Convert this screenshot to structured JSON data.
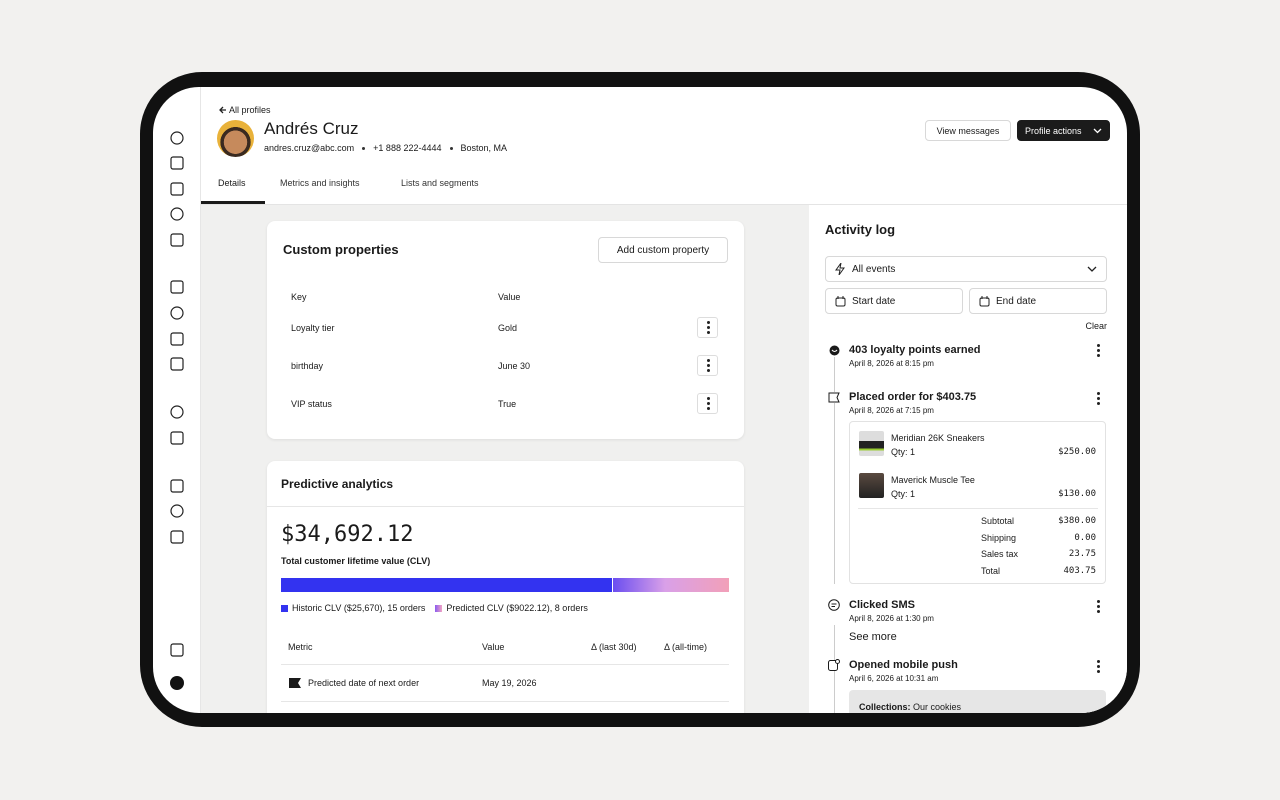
{
  "header": {
    "back_link": "All profiles",
    "name": "Andrés Cruz",
    "email": "andres.cruz@abc.com",
    "phone": "+1 888 222-4444",
    "location": "Boston, MA",
    "actions": [
      "View messages",
      "Profile actions"
    ]
  },
  "tabs": [
    "Details",
    "Metrics and insights",
    "Lists and segments"
  ],
  "custom_properties": {
    "title": "Custom properties",
    "button": "Add custom property",
    "columns": [
      "Key",
      "Value"
    ],
    "rows": [
      [
        "Loyalty tier",
        "Gold"
      ],
      [
        "birthday",
        "June 30"
      ],
      [
        "VIP status",
        "True"
      ]
    ]
  },
  "predictive": {
    "title": "Predictive analytics",
    "clv": "$34,692.12",
    "clv_label": "Total customer lifetime value (CLV)",
    "clv_bar": [
      {
        "label": "Historic CLV ($25,670), 15 orders",
        "value": 25670
      },
      {
        "label": "Predicted CLV ($9022.12), 8 orders",
        "value": 9022.12
      }
    ],
    "columns": [
      "Metric",
      "Value",
      "Δ (last 30d)",
      "Δ (all-time)"
    ],
    "rows": [
      {
        "metric": "Predicted date of next order",
        "value": "May 19, 2026"
      }
    ]
  },
  "activity": {
    "title": "Activity log",
    "filter": "All events",
    "start": "Start date",
    "end": "End date",
    "clear": "Clear",
    "events": [
      {
        "title": "403 loyalty points earned",
        "time": "April 8, 2026 at 8:15 pm"
      },
      {
        "title": "Placed order for $403.75",
        "time": "April 8, 2026 at 7:15 pm",
        "items": [
          {
            "name": "Meridian 26K Sneakers",
            "qty": "Qty: 1",
            "price": "$250.00"
          },
          {
            "name": "Maverick Muscle Tee",
            "qty": "Qty: 1",
            "price": "$130.00"
          }
        ],
        "summary": [
          [
            "Subtotal",
            "$380.00"
          ],
          [
            "Shipping",
            "0.00"
          ],
          [
            "Sales tax",
            "23.75"
          ],
          [
            "Total",
            "403.75"
          ]
        ]
      },
      {
        "title": "Clicked SMS",
        "time": "April 8, 2026 at 1:30 pm",
        "more": "See more"
      },
      {
        "title": "Opened mobile push",
        "time": "April 6, 2026 at 10:31 am",
        "detail_label": "Collections:",
        "detail": "Our cookies"
      }
    ]
  }
}
